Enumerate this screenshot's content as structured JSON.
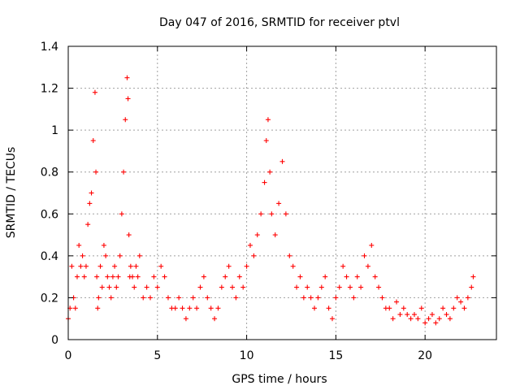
{
  "chart_data": {
    "type": "scatter",
    "title": "Day 047 of 2016, SRMTID for receiver ptvl",
    "xlabel": "GPS time / hours",
    "ylabel": "SRMTID / TECUs",
    "xlim": [
      0,
      24
    ],
    "ylim": [
      0,
      1.4
    ],
    "xticks": [
      0,
      5,
      10,
      15,
      20
    ],
    "yticks": [
      0,
      0.2,
      0.4,
      0.6,
      0.8,
      1,
      1.2,
      1.4
    ],
    "ytick_labels": [
      "0",
      "0.2",
      "0.4",
      "0.6",
      "0.8",
      "1",
      "1.2",
      "1.4"
    ],
    "grid": true,
    "marker": "plus",
    "series_color": "#ff0000",
    "series": [
      {
        "name": "SRMTID",
        "x": [
          0.0,
          0.1,
          0.2,
          0.3,
          0.4,
          0.5,
          0.6,
          0.7,
          0.8,
          0.9,
          1.0,
          1.1,
          1.2,
          1.3,
          1.4,
          1.5,
          1.55,
          1.6,
          1.65,
          1.7,
          1.8,
          1.9,
          2.0,
          2.1,
          2.2,
          2.3,
          2.4,
          2.5,
          2.6,
          2.7,
          2.8,
          2.9,
          3.0,
          3.1,
          3.2,
          3.3,
          3.35,
          3.4,
          3.45,
          3.5,
          3.6,
          3.7,
          3.8,
          3.9,
          4.0,
          4.2,
          4.4,
          4.6,
          4.8,
          5.0,
          5.2,
          5.4,
          5.6,
          5.8,
          6.0,
          6.2,
          6.4,
          6.6,
          6.8,
          7.0,
          7.2,
          7.4,
          7.6,
          7.8,
          8.0,
          8.2,
          8.4,
          8.6,
          8.8,
          9.0,
          9.2,
          9.4,
          9.6,
          9.8,
          10.0,
          10.2,
          10.4,
          10.6,
          10.8,
          11.0,
          11.1,
          11.2,
          11.3,
          11.4,
          11.6,
          11.8,
          12.0,
          12.2,
          12.4,
          12.6,
          12.8,
          13.0,
          13.2,
          13.4,
          13.6,
          13.8,
          14.0,
          14.2,
          14.4,
          14.6,
          14.8,
          15.0,
          15.2,
          15.4,
          15.6,
          15.8,
          16.0,
          16.2,
          16.4,
          16.6,
          16.8,
          17.0,
          17.2,
          17.4,
          17.6,
          17.8,
          18.0,
          18.2,
          18.4,
          18.6,
          18.8,
          19.0,
          19.2,
          19.4,
          19.6,
          19.8,
          20.0,
          20.2,
          20.4,
          20.6,
          20.8,
          21.0,
          21.2,
          21.4,
          21.6,
          21.8,
          22.0,
          22.2,
          22.4,
          22.6,
          22.7
        ],
        "y": [
          0.1,
          0.15,
          0.35,
          0.2,
          0.15,
          0.3,
          0.45,
          0.35,
          0.4,
          0.3,
          0.35,
          0.55,
          0.65,
          0.7,
          0.95,
          1.18,
          0.8,
          0.3,
          0.15,
          0.2,
          0.35,
          0.25,
          0.45,
          0.4,
          0.3,
          0.25,
          0.2,
          0.3,
          0.35,
          0.25,
          0.3,
          0.4,
          0.6,
          0.8,
          1.05,
          1.25,
          1.15,
          0.5,
          0.3,
          0.35,
          0.3,
          0.25,
          0.35,
          0.3,
          0.4,
          0.2,
          0.25,
          0.2,
          0.3,
          0.25,
          0.35,
          0.3,
          0.2,
          0.15,
          0.15,
          0.2,
          0.15,
          0.1,
          0.15,
          0.2,
          0.15,
          0.25,
          0.3,
          0.2,
          0.15,
          0.1,
          0.15,
          0.25,
          0.3,
          0.35,
          0.25,
          0.2,
          0.3,
          0.25,
          0.35,
          0.45,
          0.4,
          0.5,
          0.6,
          0.75,
          0.95,
          1.05,
          0.8,
          0.6,
          0.5,
          0.65,
          0.85,
          0.6,
          0.4,
          0.35,
          0.25,
          0.3,
          0.2,
          0.25,
          0.2,
          0.15,
          0.2,
          0.25,
          0.3,
          0.15,
          0.1,
          0.2,
          0.25,
          0.35,
          0.3,
          0.25,
          0.2,
          0.3,
          0.25,
          0.4,
          0.35,
          0.45,
          0.3,
          0.25,
          0.2,
          0.15,
          0.15,
          0.1,
          0.18,
          0.12,
          0.15,
          0.12,
          0.1,
          0.12,
          0.1,
          0.15,
          0.08,
          0.1,
          0.12,
          0.08,
          0.1,
          0.15,
          0.12,
          0.1,
          0.15,
          0.2,
          0.18,
          0.15,
          0.2,
          0.25,
          0.3
        ]
      }
    ]
  }
}
